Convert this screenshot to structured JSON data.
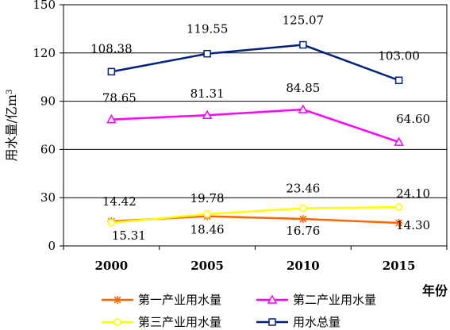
{
  "chart_data": {
    "type": "line",
    "title": "",
    "xlabel": "年份",
    "ylabel": "用水量/亿m",
    "ylabel_sup": "3",
    "categories": [
      "2000",
      "2005",
      "2010",
      "2015"
    ],
    "ylim": [
      0,
      150
    ],
    "yticks": [
      0,
      30,
      60,
      90,
      120,
      150
    ],
    "grid": true,
    "legend_position": "bottom",
    "series": [
      {
        "name": "第一产业用水量",
        "values": [
          15.31,
          18.46,
          16.76,
          14.3
        ],
        "labels": [
          "15.31",
          "18.46",
          "16.76",
          "14.30"
        ],
        "color": "#ff6600",
        "marker": "asterisk"
      },
      {
        "name": "第二产业用水量",
        "values": [
          78.65,
          81.31,
          84.85,
          64.6
        ],
        "labels": [
          "78.65",
          "81.31",
          "84.85",
          "64.60"
        ],
        "color": "#ff00ff",
        "marker": "triangle"
      },
      {
        "name": "第三产业用水量",
        "values": [
          14.42,
          19.78,
          23.46,
          24.1
        ],
        "labels": [
          "14.42",
          "19.78",
          "23.46",
          "24.10"
        ],
        "color": "#ffff00",
        "marker": "circle"
      },
      {
        "name": "用水总量",
        "values": [
          108.38,
          119.55,
          125.07,
          103.0
        ],
        "labels": [
          "108.38",
          "119.55",
          "125.07",
          "103.00"
        ],
        "color": "#002080",
        "marker": "square"
      }
    ]
  }
}
